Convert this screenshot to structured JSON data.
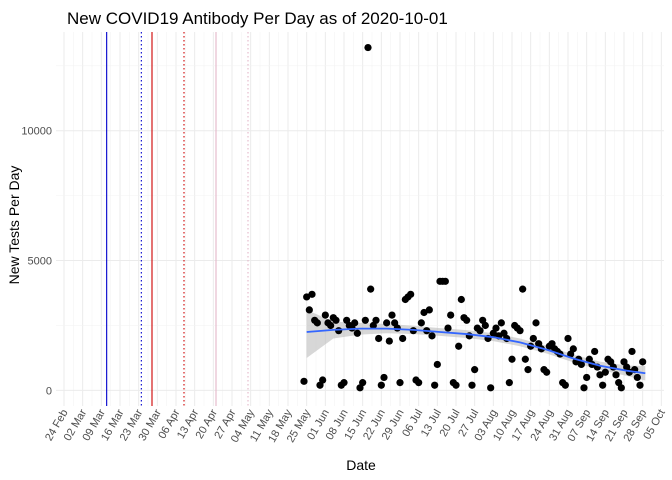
{
  "chart_data": {
    "type": "scatter",
    "title": "New COVID19 Antibody Per Day as of 2020-10-01",
    "xlabel": "Date",
    "ylabel": "New Tests Per Day",
    "x_ticks": [
      "24 Feb",
      "02 Mar",
      "09 Mar",
      "16 Mar",
      "23 Mar",
      "30 Mar",
      "06 Apr",
      "13 Apr",
      "20 Apr",
      "27 Apr",
      "04 May",
      "11 May",
      "18 May",
      "25 May",
      "01 Jun",
      "08 Jun",
      "15 Jun",
      "22 Jun",
      "29 Jun",
      "06 Jul",
      "13 Jul",
      "20 Jul",
      "27 Jul",
      "03 Aug",
      "10 Aug",
      "17 Aug",
      "24 Aug",
      "31 Aug",
      "07 Sep",
      "14 Sep",
      "21 Sep",
      "28 Sep",
      "05 Oct"
    ],
    "xlim": [
      "2020-02-21",
      "2020-10-06"
    ],
    "y_ticks": [
      0,
      5000,
      10000
    ],
    "ylim": [
      -600,
      13800
    ],
    "grid": true,
    "vertical_lines": [
      {
        "date": "2020-03-11",
        "color": "#0000cd",
        "style": "solid"
      },
      {
        "date": "2020-03-24",
        "color": "#0000cd",
        "style": "dotted"
      },
      {
        "date": "2020-03-28",
        "color": "#cd0000",
        "style": "solid"
      },
      {
        "date": "2020-04-09",
        "color": "#cd0000",
        "style": "dotted"
      },
      {
        "date": "2020-04-21",
        "color": "#e3b6c8",
        "style": "solid"
      },
      {
        "date": "2020-05-03",
        "color": "#e3b6c8",
        "style": "dotted"
      }
    ],
    "series": [
      {
        "type": "points",
        "color": "#000000",
        "points": [
          [
            "2020-05-24",
            350
          ],
          [
            "2020-05-25",
            3600
          ],
          [
            "2020-05-26",
            3100
          ],
          [
            "2020-05-27",
            3700
          ],
          [
            "2020-05-28",
            2700
          ],
          [
            "2020-05-29",
            2600
          ],
          [
            "2020-05-30",
            200
          ],
          [
            "2020-05-31",
            400
          ],
          [
            "2020-06-01",
            2900
          ],
          [
            "2020-06-02",
            2600
          ],
          [
            "2020-06-03",
            2500
          ],
          [
            "2020-06-04",
            2800
          ],
          [
            "2020-06-05",
            2700
          ],
          [
            "2020-06-06",
            2300
          ],
          [
            "2020-06-07",
            200
          ],
          [
            "2020-06-08",
            300
          ],
          [
            "2020-06-09",
            2700
          ],
          [
            "2020-06-10",
            2500
          ],
          [
            "2020-06-11",
            2400
          ],
          [
            "2020-06-12",
            2600
          ],
          [
            "2020-06-13",
            2200
          ],
          [
            "2020-06-14",
            100
          ],
          [
            "2020-06-15",
            300
          ],
          [
            "2020-06-16",
            2700
          ],
          [
            "2020-06-17",
            13200
          ],
          [
            "2020-06-18",
            3900
          ],
          [
            "2020-06-19",
            2500
          ],
          [
            "2020-06-20",
            2700
          ],
          [
            "2020-06-21",
            2000
          ],
          [
            "2020-06-22",
            200
          ],
          [
            "2020-06-23",
            500
          ],
          [
            "2020-06-24",
            2600
          ],
          [
            "2020-06-25",
            1900
          ],
          [
            "2020-06-26",
            2900
          ],
          [
            "2020-06-27",
            2600
          ],
          [
            "2020-06-28",
            2400
          ],
          [
            "2020-06-29",
            300
          ],
          [
            "2020-06-30",
            2000
          ],
          [
            "2020-07-01",
            3500
          ],
          [
            "2020-07-02",
            3600
          ],
          [
            "2020-07-03",
            3700
          ],
          [
            "2020-07-04",
            2300
          ],
          [
            "2020-07-05",
            400
          ],
          [
            "2020-07-06",
            300
          ],
          [
            "2020-07-07",
            2600
          ],
          [
            "2020-07-08",
            3000
          ],
          [
            "2020-07-09",
            2300
          ],
          [
            "2020-07-10",
            3100
          ],
          [
            "2020-07-11",
            2100
          ],
          [
            "2020-07-12",
            200
          ],
          [
            "2020-07-13",
            1000
          ],
          [
            "2020-07-14",
            4200
          ],
          [
            "2020-07-15",
            4200
          ],
          [
            "2020-07-16",
            4200
          ],
          [
            "2020-07-17",
            2400
          ],
          [
            "2020-07-18",
            2900
          ],
          [
            "2020-07-19",
            300
          ],
          [
            "2020-07-20",
            200
          ],
          [
            "2020-07-21",
            1700
          ],
          [
            "2020-07-22",
            3500
          ],
          [
            "2020-07-23",
            2800
          ],
          [
            "2020-07-24",
            2700
          ],
          [
            "2020-07-25",
            2100
          ],
          [
            "2020-07-26",
            200
          ],
          [
            "2020-07-27",
            800
          ],
          [
            "2020-07-28",
            2400
          ],
          [
            "2020-07-29",
            2300
          ],
          [
            "2020-07-30",
            2700
          ],
          [
            "2020-07-31",
            2500
          ],
          [
            "2020-08-01",
            2000
          ],
          [
            "2020-08-02",
            100
          ],
          [
            "2020-08-03",
            2200
          ],
          [
            "2020-08-04",
            2400
          ],
          [
            "2020-08-05",
            2100
          ],
          [
            "2020-08-06",
            2600
          ],
          [
            "2020-08-07",
            2200
          ],
          [
            "2020-08-08",
            2000
          ],
          [
            "2020-08-09",
            300
          ],
          [
            "2020-08-10",
            1200
          ],
          [
            "2020-08-11",
            2500
          ],
          [
            "2020-08-12",
            2400
          ],
          [
            "2020-08-13",
            2300
          ],
          [
            "2020-08-14",
            3900
          ],
          [
            "2020-08-15",
            1200
          ],
          [
            "2020-08-16",
            800
          ],
          [
            "2020-08-17",
            1700
          ],
          [
            "2020-08-18",
            2000
          ],
          [
            "2020-08-19",
            2600
          ],
          [
            "2020-08-20",
            1800
          ],
          [
            "2020-08-21",
            1600
          ],
          [
            "2020-08-22",
            800
          ],
          [
            "2020-08-23",
            700
          ],
          [
            "2020-08-24",
            1700
          ],
          [
            "2020-08-25",
            1800
          ],
          [
            "2020-08-26",
            1600
          ],
          [
            "2020-08-27",
            1500
          ],
          [
            "2020-08-28",
            1400
          ],
          [
            "2020-08-29",
            300
          ],
          [
            "2020-08-30",
            200
          ],
          [
            "2020-08-31",
            2000
          ],
          [
            "2020-09-01",
            1400
          ],
          [
            "2020-09-02",
            1600
          ],
          [
            "2020-09-03",
            1100
          ],
          [
            "2020-09-04",
            1200
          ],
          [
            "2020-09-05",
            1000
          ],
          [
            "2020-09-06",
            100
          ],
          [
            "2020-09-07",
            500
          ],
          [
            "2020-09-08",
            1200
          ],
          [
            "2020-09-09",
            1000
          ],
          [
            "2020-09-10",
            1500
          ],
          [
            "2020-09-11",
            900
          ],
          [
            "2020-09-12",
            600
          ],
          [
            "2020-09-13",
            200
          ],
          [
            "2020-09-14",
            700
          ],
          [
            "2020-09-15",
            1200
          ],
          [
            "2020-09-16",
            1100
          ],
          [
            "2020-09-17",
            900
          ],
          [
            "2020-09-18",
            600
          ],
          [
            "2020-09-19",
            300
          ],
          [
            "2020-09-20",
            100
          ],
          [
            "2020-09-21",
            1100
          ],
          [
            "2020-09-22",
            900
          ],
          [
            "2020-09-23",
            700
          ],
          [
            "2020-09-24",
            1500
          ],
          [
            "2020-09-25",
            800
          ],
          [
            "2020-09-26",
            500
          ],
          [
            "2020-09-27",
            200
          ],
          [
            "2020-09-28",
            1100
          ]
        ]
      },
      {
        "type": "smooth",
        "color": "#3366ff",
        "band_color": "#bdbdbd",
        "points": [
          [
            "2020-05-25",
            2250,
            1250,
            3100
          ],
          [
            "2020-06-04",
            2330,
            2000,
            2650
          ],
          [
            "2020-06-14",
            2380,
            2150,
            2600
          ],
          [
            "2020-06-24",
            2380,
            2200,
            2560
          ],
          [
            "2020-07-04",
            2330,
            2170,
            2490
          ],
          [
            "2020-07-14",
            2250,
            2100,
            2400
          ],
          [
            "2020-07-24",
            2170,
            2020,
            2320
          ],
          [
            "2020-08-03",
            2050,
            1900,
            2200
          ],
          [
            "2020-08-13",
            1850,
            1700,
            2000
          ],
          [
            "2020-08-23",
            1570,
            1420,
            1720
          ],
          [
            "2020-09-02",
            1230,
            1080,
            1380
          ],
          [
            "2020-09-12",
            950,
            790,
            1110
          ],
          [
            "2020-09-22",
            760,
            560,
            960
          ],
          [
            "2020-09-29",
            660,
            380,
            940
          ]
        ]
      }
    ]
  }
}
